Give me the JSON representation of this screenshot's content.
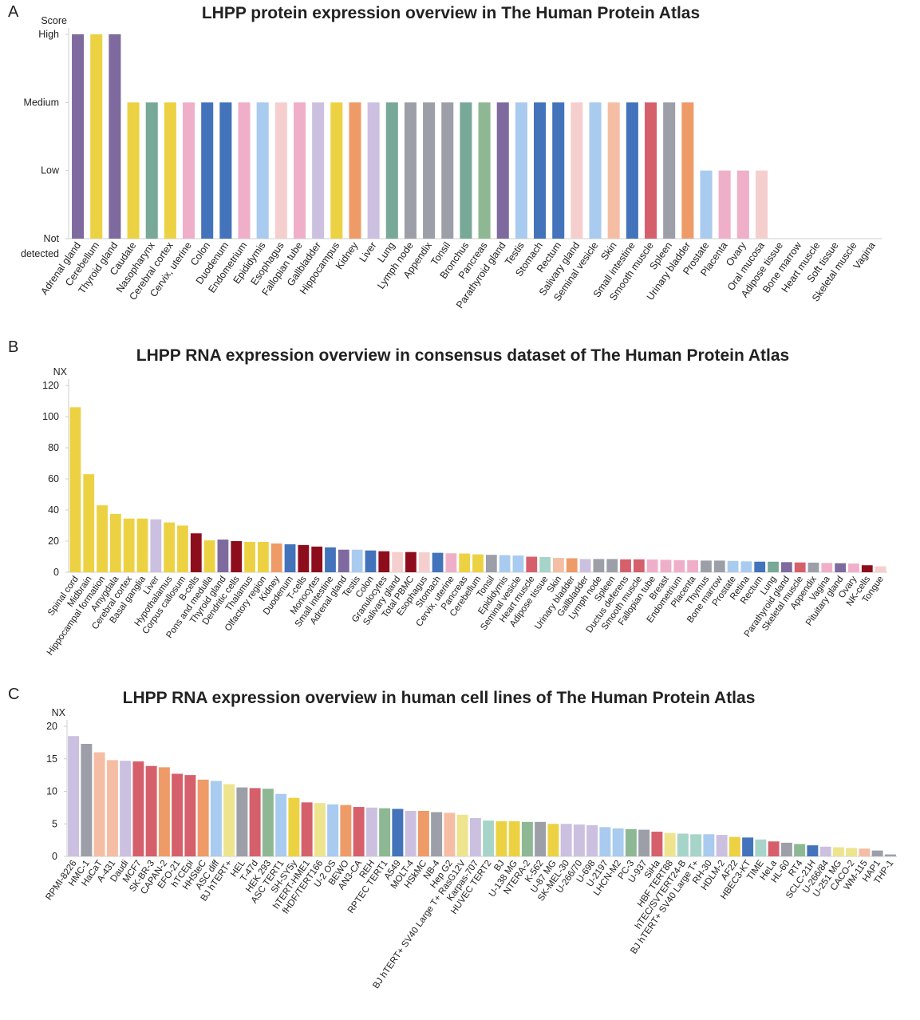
{
  "colors": {
    "yellow": "#ECD243",
    "purple": "#7E6A9E",
    "teal": "#78A898",
    "pink": "#F0AFC8",
    "blue": "#4373BA",
    "lightblue": "#A9CBEF",
    "lightpink": "#F5CFCE",
    "lavender": "#CCC0E0",
    "orange": "#EE9B68",
    "gray": "#9C9FA8",
    "green": "#8EB893",
    "salmon": "#D5606C",
    "darkred": "#8E0D1C",
    "peach": "#F5BEA4",
    "palegreen": "#A7D4C9",
    "paleyellow": "#EEE48E"
  },
  "chart_data": [
    {
      "panel": "A",
      "type": "bar",
      "title": "LHPP protein expression overview in The Human Protein Atlas",
      "ylabel": "Score",
      "yticks": [
        "Not detected",
        "Low",
        "Medium",
        "High"
      ],
      "ylim": [
        0,
        3
      ],
      "categories": [
        "Adrenal gland",
        "Cerebellum",
        "Thyroid gland",
        "Caudate",
        "Nasopharynx",
        "Cerebral cortex",
        "Cervix, uterine",
        "Colon",
        "Duodenum",
        "Endometrium",
        "Epididymis",
        "Esophagus",
        "Fallopian tube",
        "Gallbladder",
        "Hippocampus",
        "Kidney",
        "Liver",
        "Lung",
        "Lymph node",
        "Appendix",
        "Tonsil",
        "Bronchus",
        "Pancreas",
        "Parathyroid gland",
        "Testis",
        "Stomach",
        "Rectum",
        "Salivary gland",
        "Seminal vesicle",
        "Skin",
        "Small intestine",
        "Smooth muscle",
        "Spleen",
        "Urinary bladder",
        "Prostate",
        "Placenta",
        "Ovary",
        "Oral mucosa",
        "Adipose tissue",
        "Bone marrow",
        "Heart muscle",
        "Soft tissue",
        "Skeletal muscle",
        "Vagina"
      ],
      "values": [
        3,
        3,
        3,
        2,
        2,
        2,
        2,
        2,
        2,
        2,
        2,
        2,
        2,
        2,
        2,
        2,
        2,
        2,
        2,
        2,
        2,
        2,
        2,
        2,
        2,
        2,
        2,
        2,
        2,
        2,
        2,
        2,
        2,
        2,
        1,
        1,
        1,
        1,
        0,
        0,
        0,
        0,
        0,
        0
      ],
      "colors": [
        "purple",
        "yellow",
        "purple",
        "yellow",
        "teal",
        "yellow",
        "pink",
        "blue",
        "blue",
        "pink",
        "lightblue",
        "lightpink",
        "pink",
        "lavender",
        "yellow",
        "orange",
        "lavender",
        "teal",
        "gray",
        "gray",
        "gray",
        "teal",
        "green",
        "purple",
        "lightblue",
        "blue",
        "blue",
        "lightpink",
        "lightblue",
        "peach",
        "blue",
        "salmon",
        "gray",
        "orange",
        "lightblue",
        "pink",
        "pink",
        "lightpink",
        "lightpink",
        "lightpink",
        "lightpink",
        "lightpink",
        "lightpink",
        "lightpink"
      ]
    },
    {
      "panel": "B",
      "type": "bar",
      "title": "LHPP RNA expression overview in consensus dataset of  The Human Protein Atlas",
      "ylabel": "NX",
      "ylim": [
        0,
        120
      ],
      "yticks": [
        0,
        20,
        40,
        60,
        80,
        100,
        120
      ],
      "categories": [
        "Spinal cord",
        "Midbrain",
        "Hippocampal formation",
        "Amygdala",
        "Cerebral cortex",
        "Basal ganglia",
        "Liver",
        "Hypothalamus",
        "Corpus callosum",
        "B-cells",
        "Pons and medulla",
        "Thyroid gland",
        "Dendritic cells",
        "Thalamus",
        "Olfactory region",
        "Kidney",
        "Duodenum",
        "T-cells",
        "Monocytes",
        "Small intestine",
        "Adrenal gland",
        "Testis",
        "Colon",
        "Granulocytes",
        "Salivary gland",
        "Total PBMC",
        "Esophagus",
        "Stomach",
        "Cervix, uterine",
        "Pancreas",
        "Cerebellum",
        "Tonsil",
        "Epididymis",
        "Seminal vesicle",
        "Heart muscle",
        "Adipose tissue",
        "Skin",
        "Urinary bladder",
        "Gallbladder",
        "Lymph node",
        "Spleen",
        "Ductus deferens",
        "Smooth muscle",
        "Fallopian tube",
        "Breast",
        "Endometrium",
        "Placenta",
        "Thymus",
        "Bone marrow",
        "Prostate",
        "Retina",
        "Rectum",
        "Lung",
        "Parathyroid gland",
        "Skeletal muscle",
        "Appendix",
        "Vagina",
        "Pituitary gland",
        "Ovary",
        "NK-cells",
        "Tongue"
      ],
      "values": [
        106,
        63,
        43,
        37.5,
        34.5,
        34.5,
        34,
        32,
        30,
        25,
        20.5,
        21,
        20,
        19.5,
        19.5,
        18.5,
        18,
        17.5,
        16.5,
        16,
        14.5,
        14.5,
        14,
        13.5,
        13,
        13,
        12.8,
        12.5,
        12.2,
        12,
        11.5,
        11.2,
        11,
        10.8,
        10,
        9.8,
        9.2,
        9,
        8.5,
        8.5,
        8.5,
        8.3,
        8.3,
        8.2,
        8,
        7.8,
        7.8,
        7.5,
        7.5,
        7.3,
        7,
        6.8,
        6.8,
        6.5,
        6.3,
        6.2,
        6,
        5.8,
        5.6,
        4.5,
        3.8
      ],
      "colors": [
        "yellow",
        "yellow",
        "yellow",
        "yellow",
        "yellow",
        "yellow",
        "lavender",
        "yellow",
        "yellow",
        "darkred",
        "yellow",
        "purple",
        "darkred",
        "yellow",
        "yellow",
        "orange",
        "blue",
        "darkred",
        "darkred",
        "blue",
        "purple",
        "lightblue",
        "blue",
        "darkred",
        "lightpink",
        "darkred",
        "lightpink",
        "blue",
        "pink",
        "yellow",
        "yellow",
        "gray",
        "lightblue",
        "lightblue",
        "salmon",
        "palegreen",
        "peach",
        "orange",
        "lavender",
        "gray",
        "gray",
        "salmon",
        "salmon",
        "pink",
        "pink",
        "pink",
        "pink",
        "gray",
        "gray",
        "lightblue",
        "lightblue",
        "blue",
        "teal",
        "purple",
        "salmon",
        "gray",
        "pink",
        "purple",
        "pink",
        "darkred",
        "lightpink"
      ]
    },
    {
      "panel": "C",
      "type": "bar",
      "title": "LHPP RNA expression overview in human cell lines of  The Human Protein Atlas",
      "ylabel": "NX",
      "ylim": [
        0,
        20
      ],
      "yticks": [
        0,
        5,
        10,
        15,
        20
      ],
      "categories": [
        "RPMI-8226",
        "HMC-1",
        "HaCaT",
        "A-431",
        "Daudi",
        "MCF7",
        "SK-BR-3",
        "CAPAN-2",
        "EFO-21",
        "hTCEpi",
        "HHSteC",
        "ASC diff",
        "BJ hTERT+",
        "HEL",
        "T-47d",
        "HEK 293",
        "ASC TERT1",
        "SH-SY5y",
        "hTERT-HME1",
        "fHDF/TERT166",
        "U-2 OS",
        "BEWO",
        "AN3-CA",
        "REH",
        "RPTEC TERT1",
        "A549",
        "MOLT-4",
        "HSkMC",
        "NB-4",
        "Hep G2",
        "BJ hTERT+ SV40 Large T+ RasG12V",
        "Karpas-707",
        "HUVEC TERT2",
        "BJ",
        "U-138 MG",
        "NTERA-2",
        "K-562",
        "U-87 MG",
        "SK-MEL-30",
        "U-266/70",
        "U-698",
        "U-2197",
        "LHCN-M2",
        "PC-3",
        "U-937",
        "SiHa",
        "HBF TERT88",
        "hTEC/SVTERT24-B",
        "BJ hTERT+ SV40 Large T+",
        "RH-30",
        "HDLM-2",
        "AF22",
        "HBEC3-KT",
        "TIME",
        "HeLa",
        "HL-60",
        "RT4",
        "SCLC-21H",
        "U-266/84",
        "U-251 MG",
        "CACO-2",
        "WM-115",
        "HAP1",
        "THP-1"
      ],
      "values": [
        18.5,
        17.3,
        16,
        14.8,
        14.7,
        14.6,
        13.9,
        13.7,
        12.7,
        12.5,
        11.8,
        11.6,
        11.1,
        10.6,
        10.5,
        10.4,
        9.6,
        9,
        8.3,
        8.2,
        8,
        7.9,
        7.6,
        7.5,
        7.4,
        7.3,
        7,
        7,
        6.8,
        6.7,
        6.4,
        5.9,
        5.5,
        5.4,
        5.4,
        5.3,
        5.3,
        5,
        5,
        4.9,
        4.8,
        4.5,
        4.3,
        4.2,
        4.1,
        3.8,
        3.6,
        3.5,
        3.4,
        3.4,
        3.3,
        3,
        2.9,
        2.6,
        2.3,
        2.1,
        1.9,
        1.7,
        1.5,
        1.4,
        1.3,
        1.2,
        0.9,
        0.3
      ],
      "colors": [
        "lavender",
        "gray",
        "peach",
        "peach",
        "lavender",
        "salmon",
        "salmon",
        "orange",
        "salmon",
        "salmon",
        "orange",
        "lightblue",
        "paleyellow",
        "gray",
        "salmon",
        "green",
        "lightblue",
        "yellow",
        "salmon",
        "paleyellow",
        "lightblue",
        "orange",
        "salmon",
        "lavender",
        "green",
        "blue",
        "lavender",
        "orange",
        "gray",
        "peach",
        "paleyellow",
        "lavender",
        "palegreen",
        "yellow",
        "yellow",
        "green",
        "gray",
        "yellow",
        "lavender",
        "lavender",
        "lavender",
        "lightblue",
        "lightblue",
        "green",
        "gray",
        "salmon",
        "paleyellow",
        "palegreen",
        "palegreen",
        "lightblue",
        "lavender",
        "yellow",
        "blue",
        "palegreen",
        "salmon",
        "gray",
        "green",
        "blue",
        "lavender",
        "paleyellow",
        "paleyellow",
        "peach",
        "gray",
        "gray"
      ]
    }
  ]
}
